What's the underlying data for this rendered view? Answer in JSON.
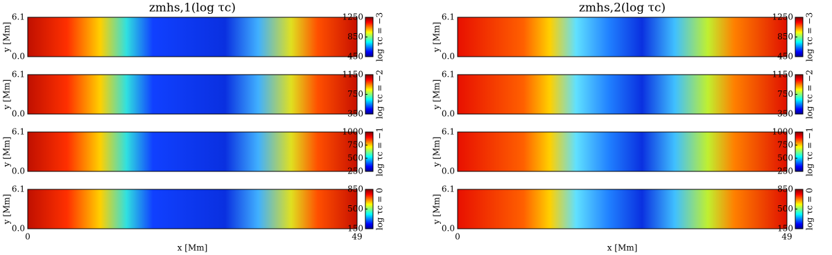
{
  "chart_data": [
    {
      "type": "heatmap",
      "title": "zmhs,1(log τc)",
      "ylabel": "y [Mm]",
      "ylim": [
        0,
        6.1
      ],
      "yticks": [
        {
          "value": 0,
          "label": "0.0"
        },
        6.1
      ],
      "xlim": [
        0,
        49
      ],
      "colorbar": {
        "label": "log τc = −3",
        "lim": [
          450,
          1250
        ],
        "ticks": [
          450,
          850,
          1250
        ]
      }
    },
    {
      "type": "heatmap",
      "ylabel": "y [Mm]",
      "ylim": [
        0,
        6.1
      ],
      "yticks": [
        {
          "value": 0,
          "label": "0.0"
        },
        6.1
      ],
      "xlim": [
        0,
        49
      ],
      "colorbar": {
        "label": "log τc = −2",
        "lim": [
          350,
          1150
        ],
        "ticks": [
          350,
          750,
          1150
        ]
      }
    },
    {
      "type": "heatmap",
      "ylabel": "y [Mm]",
      "ylim": [
        0,
        6.1
      ],
      "yticks": [
        {
          "value": 0,
          "label": "0.0"
        },
        6.1
      ],
      "xlim": [
        0,
        49
      ],
      "colorbar": {
        "label": "log τc = −1",
        "lim": [
          250,
          1000
        ],
        "ticks": [
          250,
          500,
          750,
          1000
        ]
      }
    },
    {
      "type": "heatmap",
      "ylabel": "y [Mm]",
      "xlabel": "x [Mm]",
      "ylim": [
        0,
        6.1
      ],
      "yticks": [
        {
          "value": 0,
          "label": "0.0"
        },
        6.1
      ],
      "xlim": [
        0,
        49
      ],
      "xticks": [
        0,
        49
      ],
      "colorbar": {
        "label": "log τc = 0",
        "lim": [
          150,
          850
        ],
        "ticks": [
          150,
          500,
          850
        ]
      }
    },
    {
      "type": "heatmap",
      "title": "zmhs,2(log τc)",
      "ylabel": "y [Mm]",
      "ylim": [
        0,
        6.1
      ],
      "yticks": [
        {
          "value": 0,
          "label": "0.0"
        },
        6.1
      ],
      "xlim": [
        0,
        49
      ],
      "colorbar": {
        "label": "log τc = −3",
        "lim": [
          450,
          1250
        ],
        "ticks": [
          450,
          850,
          1250
        ]
      }
    },
    {
      "type": "heatmap",
      "ylabel": "y [Mm]",
      "ylim": [
        0,
        6.1
      ],
      "yticks": [
        {
          "value": 0,
          "label": "0.0"
        },
        6.1
      ],
      "xlim": [
        0,
        49
      ],
      "colorbar": {
        "label": "log τc = −2",
        "lim": [
          350,
          1150
        ],
        "ticks": [
          350,
          750,
          1150
        ]
      }
    },
    {
      "type": "heatmap",
      "ylabel": "y [Mm]",
      "ylim": [
        0,
        6.1
      ],
      "yticks": [
        {
          "value": 0,
          "label": "0.0"
        },
        6.1
      ],
      "xlim": [
        0,
        49
      ],
      "colorbar": {
        "label": "log τc = −1",
        "lim": [
          250,
          1000
        ],
        "ticks": [
          250,
          500,
          750,
          1000
        ]
      }
    },
    {
      "type": "heatmap",
      "ylabel": "y [Mm]",
      "xlabel": "x [Mm]",
      "ylim": [
        0,
        6.1
      ],
      "yticks": [
        {
          "value": 0,
          "label": "0.0"
        },
        6.1
      ],
      "xlim": [
        0,
        49
      ],
      "xticks": [
        0,
        49
      ],
      "colorbar": {
        "label": "log τc = 0",
        "lim": [
          150,
          850
        ],
        "ticks": [
          150,
          500,
          850
        ]
      }
    }
  ]
}
